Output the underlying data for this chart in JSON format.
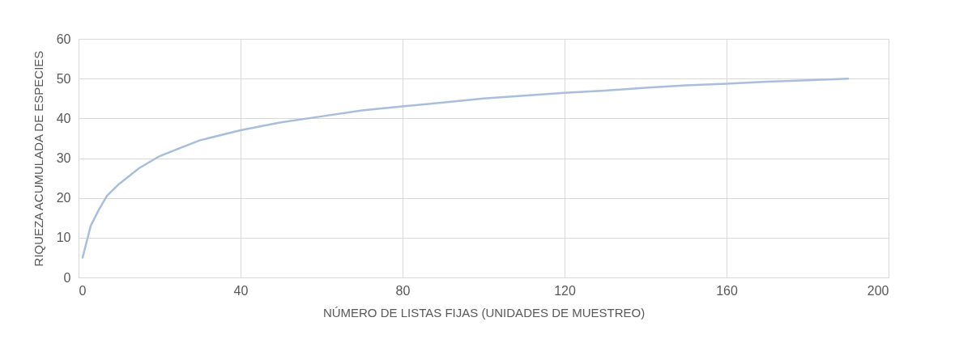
{
  "chart_data": {
    "type": "line",
    "xlabel": "NÚMERO DE LISTAS FIJAS (UNIDADES DE MUESTREO)",
    "ylabel": "RIQUEZA ACUMULADA DE ESPECIES",
    "x": [
      1,
      2,
      3,
      5,
      7,
      10,
      15,
      20,
      25,
      30,
      40,
      50,
      60,
      70,
      80,
      90,
      100,
      110,
      120,
      130,
      140,
      150,
      160,
      170,
      180,
      190
    ],
    "series": [
      {
        "color": "#a9bedc",
        "values": [
          5,
          9,
          13,
          17,
          20.5,
          23.5,
          27.5,
          30.5,
          32.5,
          34.5,
          37,
          39,
          40.5,
          42,
          43,
          44,
          45,
          45.7,
          46.4,
          47,
          47.7,
          48.3,
          48.7,
          49.2,
          49.6,
          50
        ]
      }
    ],
    "xlim": [
      0,
      200
    ],
    "xticks": [
      0,
      40,
      80,
      120,
      160,
      200
    ],
    "ylim": [
      0,
      60
    ],
    "yticks": [
      0,
      10,
      20,
      30,
      40,
      50,
      60
    ],
    "grid": true,
    "marker": "none",
    "line_style": "solid"
  }
}
